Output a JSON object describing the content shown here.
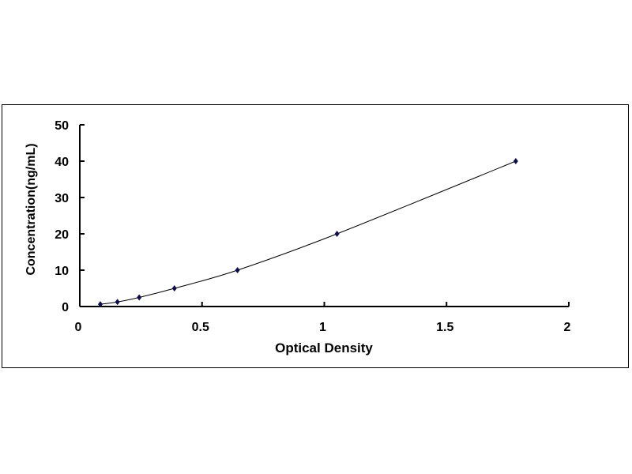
{
  "chart_data": {
    "type": "scatter",
    "title": "",
    "xlabel": "Optical Density",
    "ylabel": "Concentration(ng/mL)",
    "xlim": [
      0,
      2
    ],
    "ylim": [
      0,
      50
    ],
    "xticks": [
      "0",
      "0.5",
      "1",
      "1.5",
      "2"
    ],
    "yticks": [
      "0",
      "10",
      "20",
      "30",
      "40",
      "50"
    ],
    "grid": false,
    "legend": "none",
    "trendline": "smooth curve through points",
    "marker": "diamond",
    "color": "#0d0d4a",
    "x": [
      0.084,
      0.154,
      0.243,
      0.387,
      0.645,
      1.052,
      1.783
    ],
    "y": [
      0.625,
      1.25,
      2.5,
      5,
      10,
      20,
      40
    ]
  }
}
